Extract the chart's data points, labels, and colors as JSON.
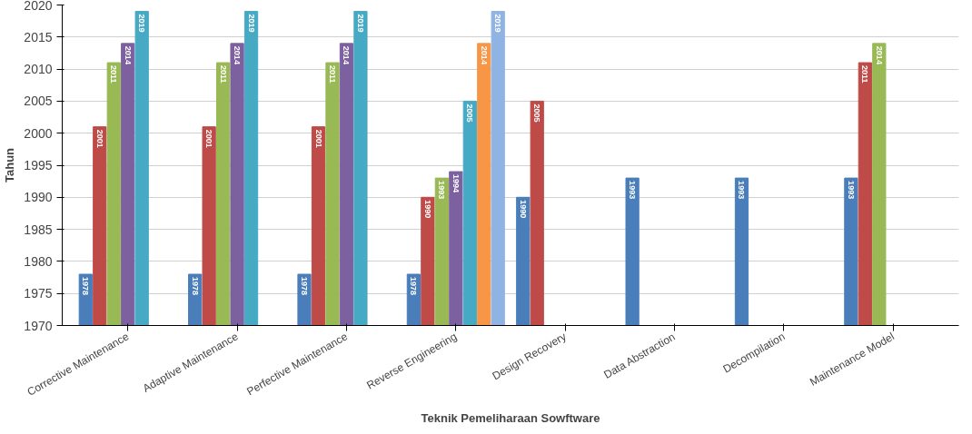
{
  "chart_data": {
    "type": "bar",
    "xlabel": "Teknik Pemeliharaan Sowftware",
    "ylabel": "Tahun",
    "categories": [
      "Corrective Maintenance",
      "Adaptive Maintenance",
      "Perfective Maintenance",
      "Reverse Engineering",
      "Design Recovery",
      "Data Abstraction",
      "Decompilation",
      "Maintenance Model"
    ],
    "series": [
      {
        "color": "#4a7ebb",
        "values": [
          1978,
          1978,
          1978,
          1978,
          1990,
          1993,
          1993,
          1993
        ]
      },
      {
        "color": "#be4b48",
        "values": [
          2001,
          2001,
          2001,
          1990,
          2005,
          null,
          null,
          2011
        ]
      },
      {
        "color": "#98b954",
        "values": [
          2011,
          2011,
          2011,
          1993,
          null,
          null,
          null,
          2014
        ]
      },
      {
        "color": "#7d60a0",
        "values": [
          2014,
          2014,
          2014,
          1994,
          null,
          null,
          null,
          null
        ]
      },
      {
        "color": "#46aac5",
        "values": [
          2019,
          2019,
          2019,
          2005,
          null,
          null,
          null,
          null
        ]
      },
      {
        "color": "#f79646",
        "values": [
          null,
          null,
          null,
          2014,
          null,
          null,
          null,
          null
        ]
      },
      {
        "color": "#8fb4e3",
        "values": [
          null,
          null,
          null,
          2019,
          null,
          null,
          null,
          null
        ]
      }
    ],
    "ylim": [
      1970,
      2020
    ],
    "yticks": [
      1970,
      1975,
      1980,
      1985,
      1990,
      1995,
      2000,
      2005,
      2010,
      2015,
      2020
    ],
    "grid": "y",
    "data_labels": true
  }
}
